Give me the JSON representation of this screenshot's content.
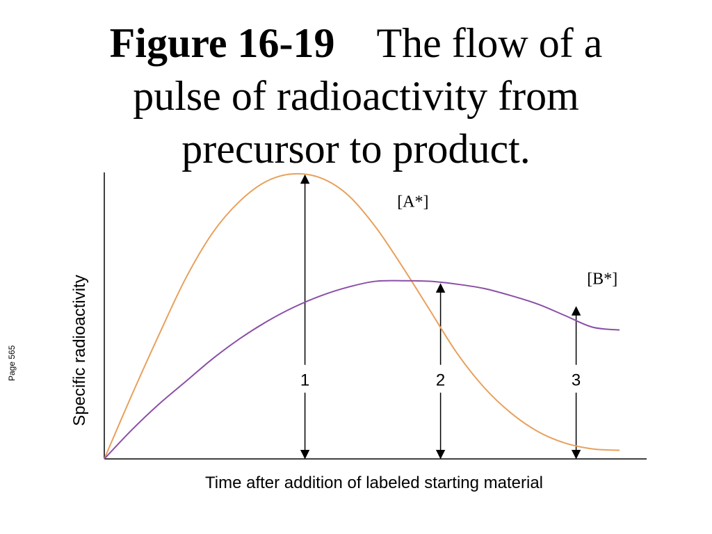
{
  "page": {
    "figure_number": "Figure 16-19",
    "title_rest": "The flow of a pulse of radioactivity from precursor to product.",
    "side_note": "Page 565"
  },
  "colors": {
    "series_a": "#e8a05c",
    "series_b": "#8a4fa6",
    "axis": "#000000"
  },
  "chart_data": {
    "type": "line",
    "title": "",
    "xlabel": "Time after addition of labeled starting material",
    "ylabel": "Specific radioactivity",
    "xlim": [
      0,
      10
    ],
    "ylim": [
      0,
      10
    ],
    "grid": false,
    "ticks": "none",
    "series": [
      {
        "name": "[A*]",
        "color": "#e8a05c",
        "points": [
          [
            0.0,
            0.0
          ],
          [
            0.5,
            2.2
          ],
          [
            1.0,
            4.3
          ],
          [
            1.5,
            6.3
          ],
          [
            2.0,
            7.9
          ],
          [
            2.5,
            9.0
          ],
          [
            3.0,
            9.7
          ],
          [
            3.5,
            9.95
          ],
          [
            4.0,
            9.8
          ],
          [
            4.5,
            9.2
          ],
          [
            5.0,
            8.1
          ],
          [
            5.5,
            6.7
          ],
          [
            6.0,
            5.2
          ],
          [
            6.5,
            3.7
          ],
          [
            7.0,
            2.5
          ],
          [
            7.5,
            1.6
          ],
          [
            8.0,
            0.95
          ],
          [
            8.5,
            0.55
          ],
          [
            9.0,
            0.35
          ],
          [
            9.5,
            0.3
          ]
        ]
      },
      {
        "name": "[B*]",
        "color": "#8a4fa6",
        "points": [
          [
            0.0,
            0.0
          ],
          [
            0.5,
            1.0
          ],
          [
            1.0,
            1.9
          ],
          [
            1.5,
            2.7
          ],
          [
            2.0,
            3.5
          ],
          [
            2.5,
            4.2
          ],
          [
            3.0,
            4.8
          ],
          [
            3.5,
            5.3
          ],
          [
            4.0,
            5.7
          ],
          [
            4.5,
            6.0
          ],
          [
            5.0,
            6.2
          ],
          [
            5.5,
            6.22
          ],
          [
            6.0,
            6.2
          ],
          [
            6.5,
            6.1
          ],
          [
            7.0,
            5.95
          ],
          [
            7.5,
            5.7
          ],
          [
            8.0,
            5.4
          ],
          [
            8.5,
            5.0
          ],
          [
            9.0,
            4.6
          ],
          [
            9.5,
            4.5
          ]
        ]
      }
    ],
    "series_labels": [
      {
        "text": "[A*]",
        "x": 5.4,
        "y": 8.8
      },
      {
        "text": "[B*]",
        "x": 8.9,
        "y": 6.1
      }
    ],
    "markers": [
      {
        "label": "1",
        "x": 3.7,
        "y_top": 9.9
      },
      {
        "label": "2",
        "x": 6.2,
        "y_top": 6.1
      },
      {
        "label": "3",
        "x": 8.7,
        "y_top": 5.3
      }
    ],
    "marker_label_y": 2.75
  }
}
